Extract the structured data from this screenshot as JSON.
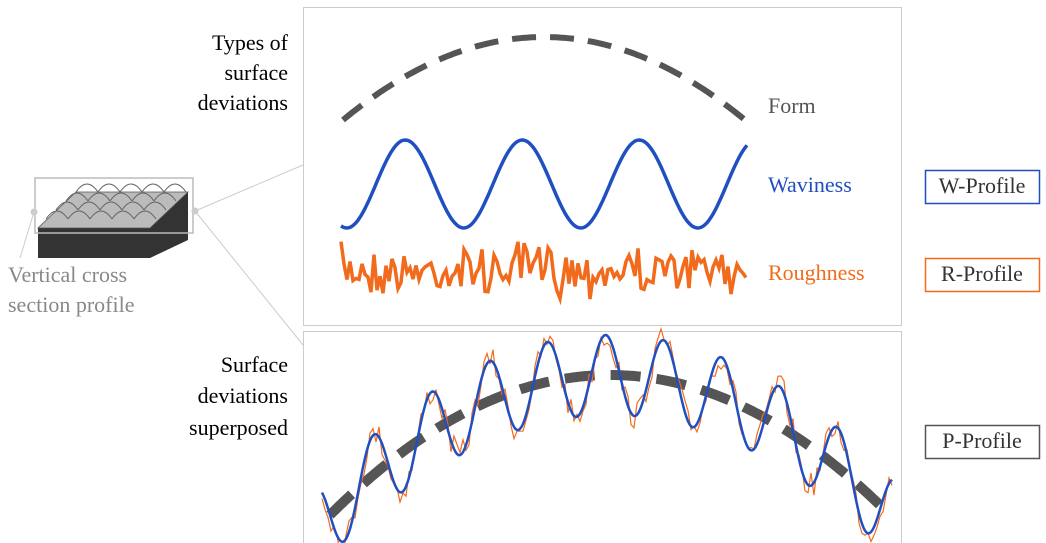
{
  "left_labels": {
    "types": [
      "Types of",
      "surface",
      "deviations"
    ],
    "cross_section": [
      "Vertical cross",
      "section profile"
    ],
    "superposed": [
      "Surface",
      "deviations",
      "superposed"
    ]
  },
  "components": [
    {
      "label": "Form"
    },
    {
      "label": "Waviness",
      "profile": "W-Profile"
    },
    {
      "label": "Roughness",
      "profile": "R-Profile"
    }
  ],
  "superposed_profile": "P-Profile"
}
